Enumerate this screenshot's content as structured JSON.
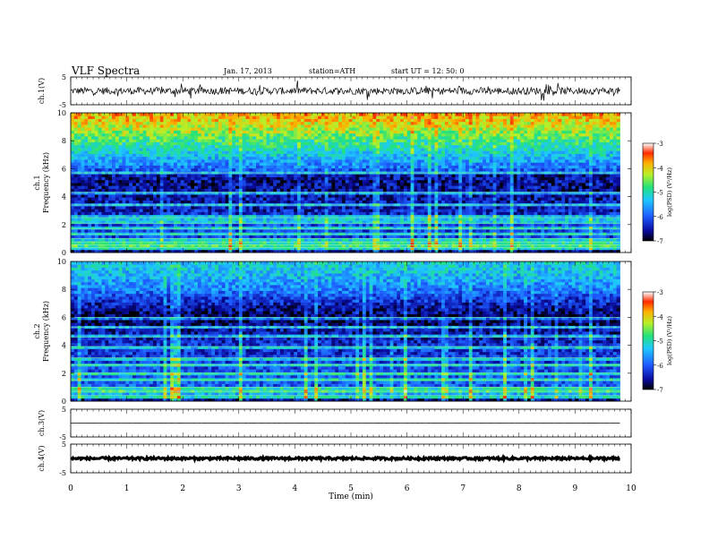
{
  "header": {
    "title": "VLF  Spectra",
    "date": "Jan. 17, 2013",
    "station": "station=ATH",
    "start": "start  UT  =    12: 50: 0"
  },
  "chart_data": [
    {
      "type": "line",
      "panel": "ch1",
      "ylabel": "ch.1(V)",
      "yticks": [
        "5",
        "-5"
      ],
      "ylim": [
        -5,
        5
      ],
      "xlim": [
        0,
        10
      ],
      "data_end_min": 9.8,
      "description_values": {
        "baseline_v": 0.0,
        "noise_amplitude_v": 1.3
      }
    },
    {
      "type": "heatmap",
      "panel": "ch1-spectrogram",
      "ylabel": "ch.1\nFrequency  (kHz)",
      "ylabel_lines": [
        "ch.1",
        "Frequency  (kHz)"
      ],
      "yticks": [
        "0",
        "2",
        "4",
        "6",
        "8",
        "10"
      ],
      "ylim": [
        0,
        10
      ],
      "xlim": [
        0,
        10
      ],
      "data_end_min": 9.8,
      "colorbar": {
        "label": "log(PSD) (V²/Hz)",
        "ticks": [
          "-3",
          "-4",
          "-5",
          "-6",
          "-7"
        ],
        "range": [
          -7,
          -3
        ]
      },
      "psd_profile_khz": [
        {
          "f": 0.0,
          "logpsd": -6.8
        },
        {
          "f": 0.5,
          "logpsd": -5.6
        },
        {
          "f": 1.0,
          "logpsd": -6.2
        },
        {
          "f": 2.0,
          "logpsd": -6.1
        },
        {
          "f": 3.0,
          "logpsd": -6.4
        },
        {
          "f": 4.0,
          "logpsd": -6.5
        },
        {
          "f": 5.0,
          "logpsd": -6.6
        },
        {
          "f": 5.7,
          "logpsd": -6.5
        },
        {
          "f": 6.0,
          "logpsd": -5.9
        },
        {
          "f": 7.0,
          "logpsd": -5.3
        },
        {
          "f": 8.0,
          "logpsd": -4.8
        },
        {
          "f": 9.0,
          "logpsd": -4.2
        },
        {
          "f": 10.0,
          "logpsd": -3.8
        }
      ],
      "tone_lines_khz": [
        0.35,
        0.55,
        0.75,
        1.0,
        1.3,
        1.7,
        2.1,
        2.5,
        3.4,
        4.3,
        5.7
      ]
    },
    {
      "type": "heatmap",
      "panel": "ch2-spectrogram",
      "ylabel": "ch.2\nFrequency  (kHz)",
      "ylabel_lines": [
        "ch.2",
        "Frequency  (kHz)"
      ],
      "yticks": [
        "0",
        "2",
        "4",
        "6",
        "8",
        "10"
      ],
      "ylim": [
        0,
        10
      ],
      "xlim": [
        0,
        10
      ],
      "data_end_min": 9.8,
      "colorbar": {
        "label": "log(PSD) (V²/Hz)",
        "ticks": [
          "-3",
          "-4",
          "-5",
          "-6",
          "-7"
        ],
        "range": [
          -7,
          -3
        ]
      },
      "psd_profile_khz": [
        {
          "f": 0.0,
          "logpsd": -6.8
        },
        {
          "f": 0.5,
          "logpsd": -5.5
        },
        {
          "f": 1.0,
          "logpsd": -6.0
        },
        {
          "f": 2.0,
          "logpsd": -6.0
        },
        {
          "f": 3.0,
          "logpsd": -6.2
        },
        {
          "f": 4.0,
          "logpsd": -6.3
        },
        {
          "f": 5.0,
          "logpsd": -6.5
        },
        {
          "f": 6.0,
          "logpsd": -6.8
        },
        {
          "f": 7.0,
          "logpsd": -6.4
        },
        {
          "f": 8.0,
          "logpsd": -5.8
        },
        {
          "f": 9.0,
          "logpsd": -5.4
        },
        {
          "f": 10.0,
          "logpsd": -5.2
        }
      ],
      "tone_lines_khz": [
        0.4,
        0.7,
        1.0,
        1.5,
        2.0,
        2.6,
        3.1,
        3.9,
        4.6,
        5.3,
        6.0
      ]
    },
    {
      "type": "line",
      "panel": "ch3",
      "ylabel": "ch.3(V)",
      "yticks": [
        "5",
        "-5"
      ],
      "ylim": [
        -5,
        5
      ],
      "xlim": [
        0,
        10
      ],
      "data_end_min": 9.8,
      "description_values": {
        "baseline_v": 0.0,
        "noise_amplitude_v": 0.05
      }
    },
    {
      "type": "line",
      "panel": "ch4",
      "ylabel": "ch.4(V)",
      "yticks": [
        "5",
        "-5"
      ],
      "ylim": [
        -5,
        5
      ],
      "xlim": [
        0,
        10
      ],
      "data_end_min": 9.8,
      "description_values": {
        "baseline_v": 0.0,
        "noise_amplitude_v": 0.4
      }
    }
  ],
  "xaxis": {
    "label": "Time  (min)",
    "ticks": [
      "0",
      "1",
      "2",
      "3",
      "4",
      "5",
      "6",
      "7",
      "8",
      "9",
      "10"
    ],
    "range": [
      0,
      10
    ]
  }
}
